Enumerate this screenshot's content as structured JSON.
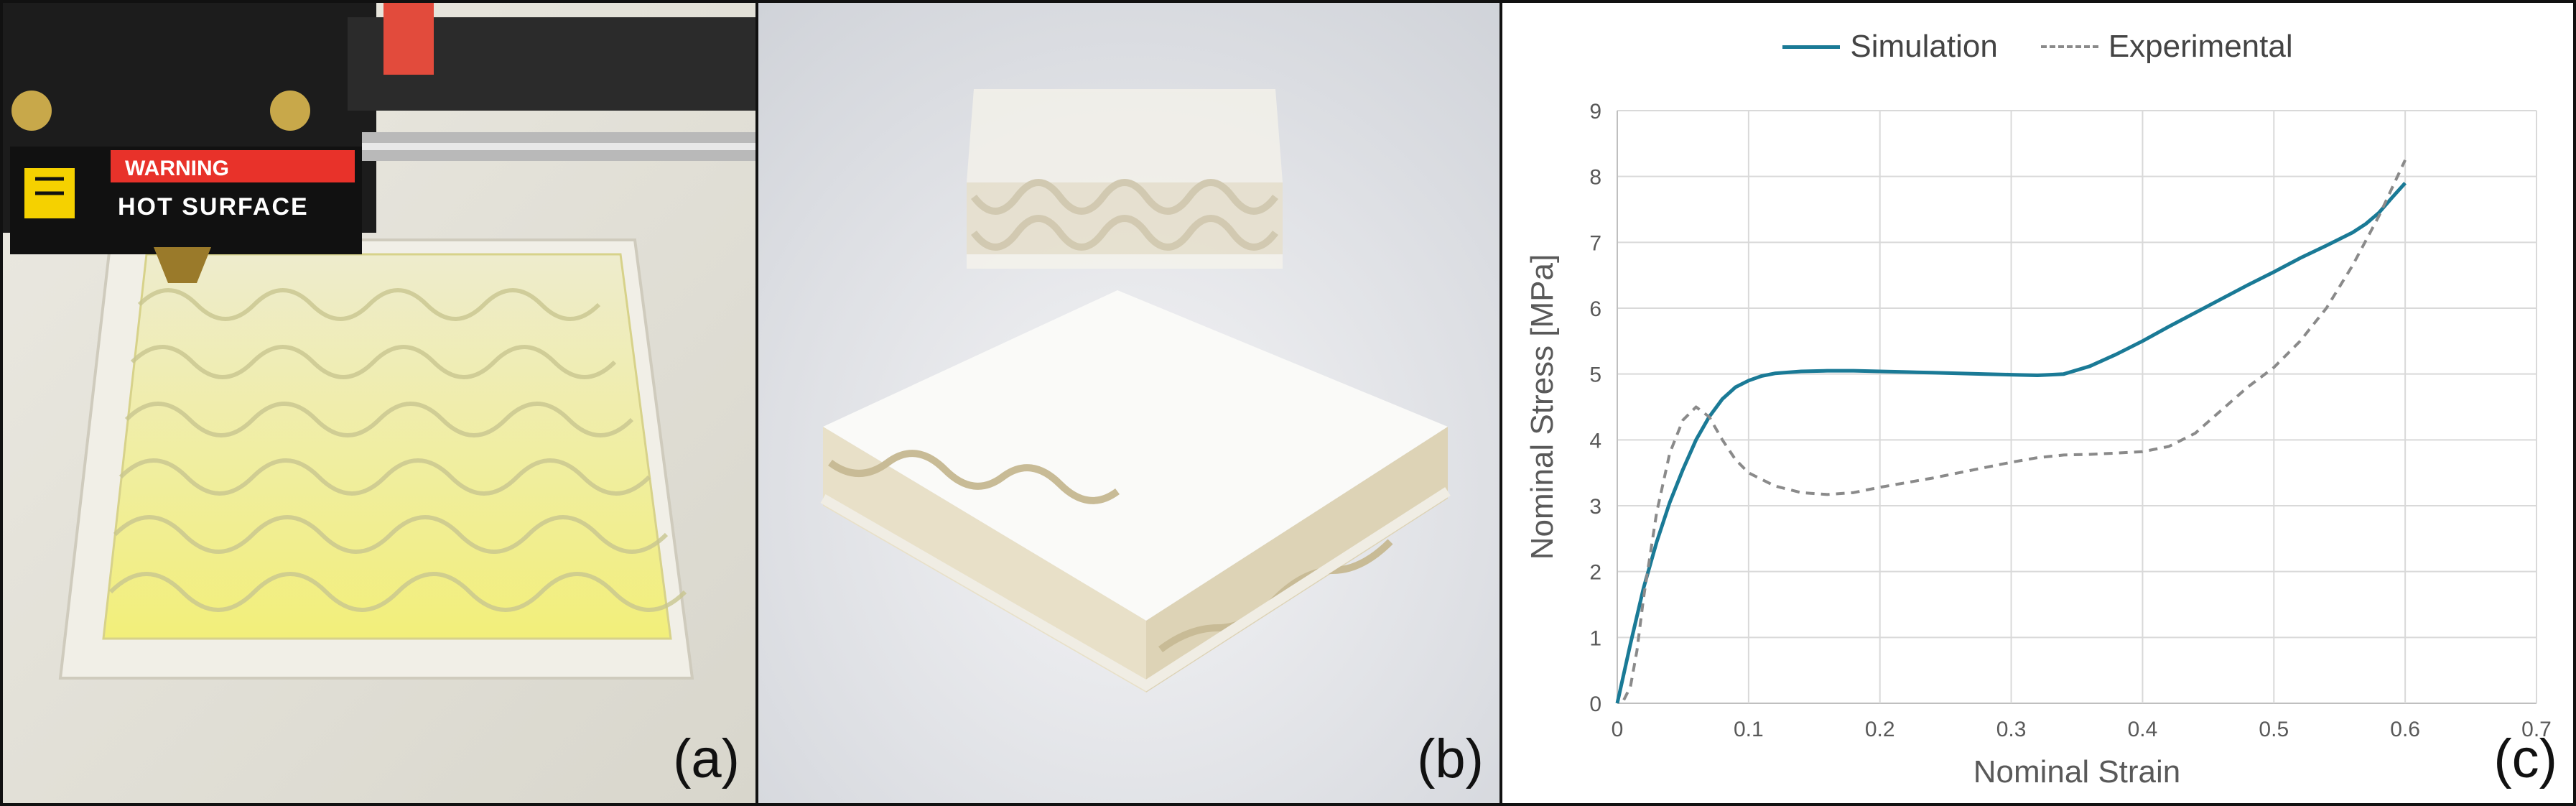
{
  "panels": {
    "a": {
      "label": "(a)",
      "sticker_warning": "WARNING",
      "sticker_text": "HOT SURFACE"
    },
    "b": {
      "label": "(b)"
    },
    "c": {
      "label": "(c)"
    }
  },
  "colors": {
    "simulation": "#1a7a96",
    "experimental": "#8a8a8a",
    "grid": "#d9d9d9",
    "axis": "#bfbfbf",
    "print_yellow": "#f2f0a0",
    "sticker_red": "#e8322a"
  },
  "chart_data": {
    "type": "line",
    "title": "",
    "xlabel": "Nominal Strain",
    "ylabel": "Nominal Stress [MPa]",
    "xlim": [
      0,
      0.7
    ],
    "ylim": [
      0,
      9
    ],
    "xticks": [
      "0",
      "0.1",
      "0.2",
      "0.3",
      "0.4",
      "0.5",
      "0.6",
      "0.7"
    ],
    "yticks": [
      "0",
      "1",
      "2",
      "3",
      "4",
      "5",
      "6",
      "7",
      "8",
      "9"
    ],
    "grid": true,
    "legend_position": "top-center",
    "series": [
      {
        "name": "Simulation",
        "style": "solid",
        "x": [
          0,
          0.01,
          0.02,
          0.03,
          0.04,
          0.05,
          0.06,
          0.07,
          0.08,
          0.09,
          0.1,
          0.11,
          0.12,
          0.14,
          0.16,
          0.18,
          0.2,
          0.22,
          0.24,
          0.26,
          0.28,
          0.3,
          0.32,
          0.34,
          0.36,
          0.38,
          0.4,
          0.42,
          0.44,
          0.46,
          0.48,
          0.5,
          0.52,
          0.54,
          0.56,
          0.57,
          0.58,
          0.59,
          0.6
        ],
        "y": [
          0,
          0.9,
          1.75,
          2.45,
          3.05,
          3.55,
          4.0,
          4.35,
          4.62,
          4.8,
          4.9,
          4.97,
          5.01,
          5.04,
          5.05,
          5.05,
          5.04,
          5.03,
          5.02,
          5.01,
          5.0,
          4.99,
          4.98,
          5.0,
          5.12,
          5.3,
          5.5,
          5.72,
          5.93,
          6.14,
          6.35,
          6.55,
          6.76,
          6.95,
          7.15,
          7.28,
          7.45,
          7.68,
          7.9
        ]
      },
      {
        "name": "Experimental",
        "style": "dashed",
        "x": [
          0.005,
          0.01,
          0.015,
          0.02,
          0.03,
          0.04,
          0.05,
          0.06,
          0.07,
          0.08,
          0.09,
          0.1,
          0.12,
          0.14,
          0.16,
          0.18,
          0.2,
          0.22,
          0.24,
          0.26,
          0.28,
          0.3,
          0.32,
          0.34,
          0.36,
          0.38,
          0.4,
          0.42,
          0.44,
          0.46,
          0.48,
          0.5,
          0.52,
          0.54,
          0.56,
          0.58,
          0.6
        ],
        "y": [
          0.05,
          0.25,
          0.8,
          1.6,
          2.9,
          3.8,
          4.3,
          4.5,
          4.35,
          4.0,
          3.7,
          3.5,
          3.3,
          3.2,
          3.17,
          3.2,
          3.28,
          3.35,
          3.42,
          3.5,
          3.58,
          3.66,
          3.73,
          3.77,
          3.78,
          3.8,
          3.82,
          3.9,
          4.1,
          4.45,
          4.8,
          5.1,
          5.5,
          6.0,
          6.65,
          7.4,
          8.25
        ]
      }
    ]
  }
}
